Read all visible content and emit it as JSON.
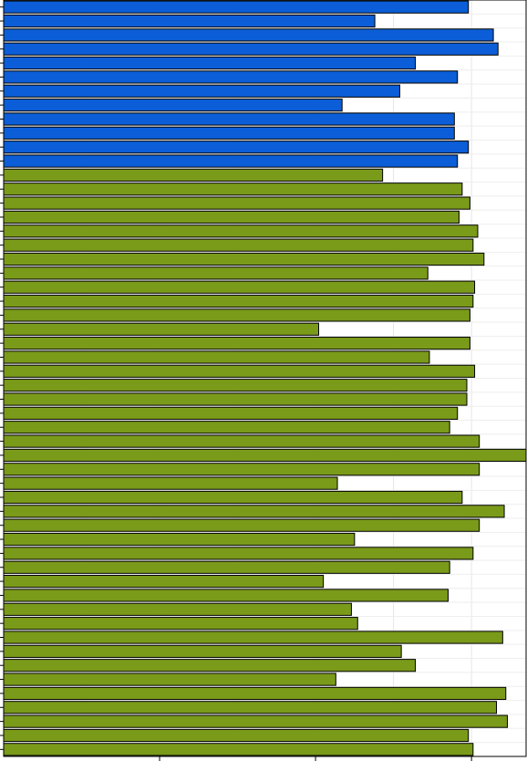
{
  "chart_data": {
    "type": "bar",
    "orientation": "horizontal",
    "title": "",
    "xlabel": "",
    "ylabel": "",
    "grid": true,
    "xlim": [
      0,
      3.35
    ],
    "colors": {
      "group_a": "#0b5ed7",
      "group_b": "#7a9a1a",
      "edge": "#000000"
    },
    "series": [
      {
        "color_key": "group_a",
        "values": [
          2.98,
          2.38,
          3.14,
          3.17,
          2.64,
          2.91,
          2.54,
          2.17,
          2.89,
          2.89,
          2.98,
          2.91
        ]
      },
      {
        "color_key": "group_b",
        "values": [
          2.43,
          2.94,
          2.99,
          2.92,
          3.04,
          3.01,
          3.08,
          2.72,
          3.02,
          3.01,
          2.99,
          2.02,
          2.99,
          2.73,
          3.02,
          2.97,
          2.97,
          2.91,
          2.86,
          3.05,
          3.35,
          3.05,
          2.14,
          2.94,
          3.21,
          3.05,
          2.25,
          3.01,
          2.86,
          2.05,
          2.85,
          2.23,
          2.27,
          3.2,
          2.55,
          2.64,
          2.13,
          3.22,
          3.16,
          3.23,
          2.98,
          3.01
        ]
      }
    ]
  }
}
